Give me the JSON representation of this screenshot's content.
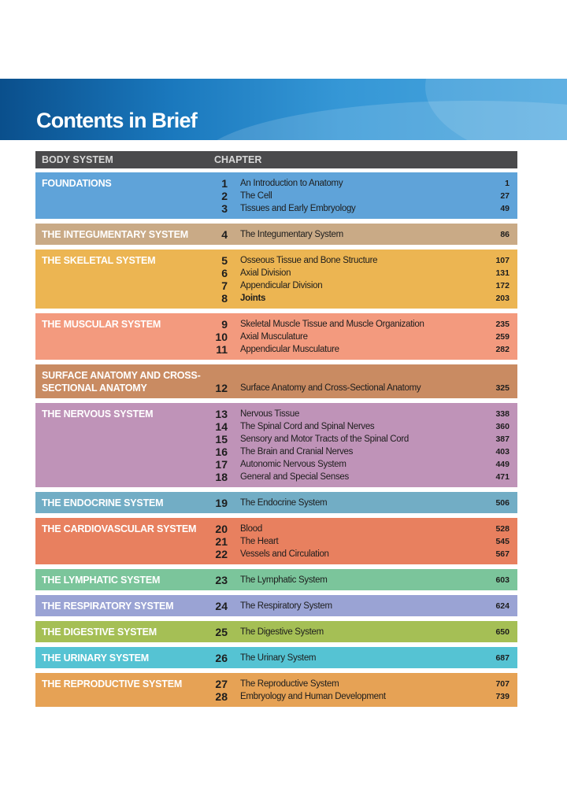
{
  "title": "Contents in Brief",
  "headers": {
    "system": "BODY SYSTEM",
    "chapter": "CHAPTER"
  },
  "systems": [
    {
      "name": "FOUNDATIONS",
      "color": "#5fa3d9",
      "chapters": [
        {
          "num": "1",
          "title": "An Introduction to Anatomy",
          "page": "1"
        },
        {
          "num": "2",
          "title": "The Cell",
          "page": "27"
        },
        {
          "num": "3",
          "title": "Tissues and Early Embryology",
          "page": "49"
        }
      ]
    },
    {
      "name": "THE INTEGUMENTARY SYSTEM",
      "color": "#c9aa86",
      "chapters": [
        {
          "num": "4",
          "title": "The Integumentary System",
          "page": "86"
        }
      ]
    },
    {
      "name": "THE SKELETAL SYSTEM",
      "color": "#ecb552",
      "chapters": [
        {
          "num": "5",
          "title": "Osseous Tissue and Bone Structure",
          "page": "107"
        },
        {
          "num": "6",
          "title": "Axial Division",
          "page": "131"
        },
        {
          "num": "7",
          "title": "Appendicular Division",
          "page": "172"
        },
        {
          "num": "8",
          "title": "Joints",
          "page": "203",
          "bold": true
        }
      ]
    },
    {
      "name": "THE MUSCULAR SYSTEM",
      "color": "#f39a7e",
      "chapters": [
        {
          "num": "9",
          "title": "Skeletal Muscle Tissue and Muscle Organization",
          "page": "235"
        },
        {
          "num": "10",
          "title": "Axial Musculature",
          "page": "259"
        },
        {
          "num": "11",
          "title": "Appendicular Musculature",
          "page": "282"
        }
      ]
    },
    {
      "name": "SURFACE ANATOMY AND CROSS-SECTIONAL ANATOMY",
      "color": "#c98b62",
      "twoLine": true,
      "chapters": [
        {
          "num": "12",
          "title": "Surface Anatomy and Cross-Sectional Anatomy",
          "page": "325"
        }
      ]
    },
    {
      "name": "THE NERVOUS SYSTEM",
      "color": "#bf93b8",
      "chapters": [
        {
          "num": "13",
          "title": "Nervous Tissue",
          "page": "338"
        },
        {
          "num": "14",
          "title": "The Spinal Cord and Spinal Nerves",
          "page": "360"
        },
        {
          "num": "15",
          "title": "Sensory and Motor Tracts of the Spinal Cord",
          "page": "387"
        },
        {
          "num": "16",
          "title": "The Brain and Cranial Nerves",
          "page": "403"
        },
        {
          "num": "17",
          "title": "Autonomic Nervous System",
          "page": "449"
        },
        {
          "num": "18",
          "title": "General and Special Senses",
          "page": "471"
        }
      ]
    },
    {
      "name": "THE ENDOCRINE SYSTEM",
      "color": "#72adc5",
      "chapters": [
        {
          "num": "19",
          "title": "The Endocrine System",
          "page": "506"
        }
      ]
    },
    {
      "name": "THE CARDIOVASCULAR SYSTEM",
      "color": "#e8805f",
      "chapters": [
        {
          "num": "20",
          "title": "Blood",
          "page": "528"
        },
        {
          "num": "21",
          "title": "The Heart",
          "page": "545"
        },
        {
          "num": "22",
          "title": "Vessels and Circulation",
          "page": "567"
        }
      ]
    },
    {
      "name": "THE LYMPHATIC SYSTEM",
      "color": "#7bc59b",
      "chapters": [
        {
          "num": "23",
          "title": "The Lymphatic System",
          "page": "603"
        }
      ]
    },
    {
      "name": "THE RESPIRATORY SYSTEM",
      "color": "#9aa3d4",
      "chapters": [
        {
          "num": "24",
          "title": "The Respiratory System",
          "page": "624"
        }
      ]
    },
    {
      "name": "THE DIGESTIVE SYSTEM",
      "color": "#a5bf55",
      "chapters": [
        {
          "num": "25",
          "title": "The Digestive System",
          "page": "650"
        }
      ]
    },
    {
      "name": "THE URINARY SYSTEM",
      "color": "#55c3d3",
      "chapters": [
        {
          "num": "26",
          "title": "The Urinary System",
          "page": "687"
        }
      ]
    },
    {
      "name": "THE REPRODUCTIVE SYSTEM",
      "color": "#e6a255",
      "chapters": [
        {
          "num": "27",
          "title": "The Reproductive System",
          "page": "707"
        },
        {
          "num": "28",
          "title": "Embryology and Human Development",
          "page": "739"
        }
      ]
    }
  ]
}
